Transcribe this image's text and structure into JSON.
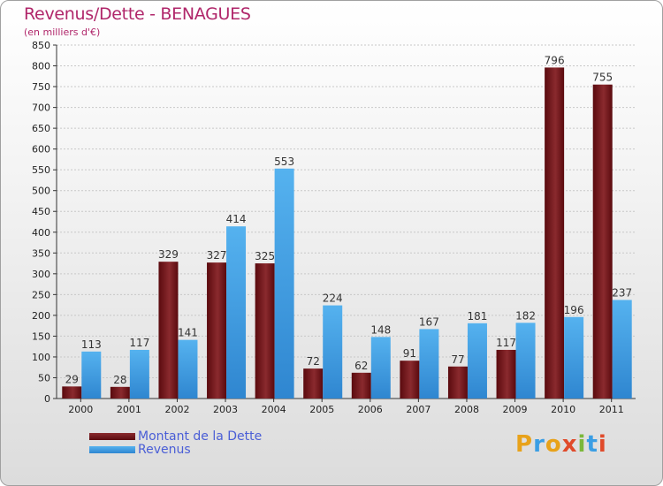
{
  "title": "Revenus/Dette - BENAGUES",
  "subtitle": "(en milliers d'€)",
  "colors": {
    "dette": "#6b0d12",
    "revenus": "#3a9ee4",
    "title": "#b0266a",
    "legend_text": "#4a5ed6"
  },
  "legend": [
    {
      "label": "Montant de la Dette",
      "color": "#6b0d12"
    },
    {
      "label": "Revenus",
      "color": "#3a9ee4"
    }
  ],
  "logo": {
    "text": "Proxiti"
  },
  "chart_data": {
    "type": "bar",
    "title": "Revenus/Dette - BENAGUES",
    "subtitle": "(en milliers d'€)",
    "xlabel": "",
    "ylabel": "",
    "ylim": [
      0,
      850
    ],
    "yticks": [
      0,
      50,
      100,
      150,
      200,
      250,
      300,
      350,
      400,
      450,
      500,
      550,
      600,
      650,
      700,
      750,
      800,
      850
    ],
    "grid": true,
    "legend_position": "bottom-left",
    "categories": [
      "2000",
      "2001",
      "2002",
      "2003",
      "2004",
      "2005",
      "2006",
      "2007",
      "2008",
      "2009",
      "2010",
      "2011"
    ],
    "series": [
      {
        "name": "Montant de la Dette",
        "color": "#6b0d12",
        "values": [
          29,
          28,
          329,
          327,
          325,
          72,
          62,
          91,
          77,
          117,
          796,
          755
        ]
      },
      {
        "name": "Revenus",
        "color": "#3a9ee4",
        "values": [
          113,
          117,
          141,
          414,
          553,
          224,
          148,
          167,
          181,
          182,
          196,
          237
        ]
      }
    ]
  }
}
